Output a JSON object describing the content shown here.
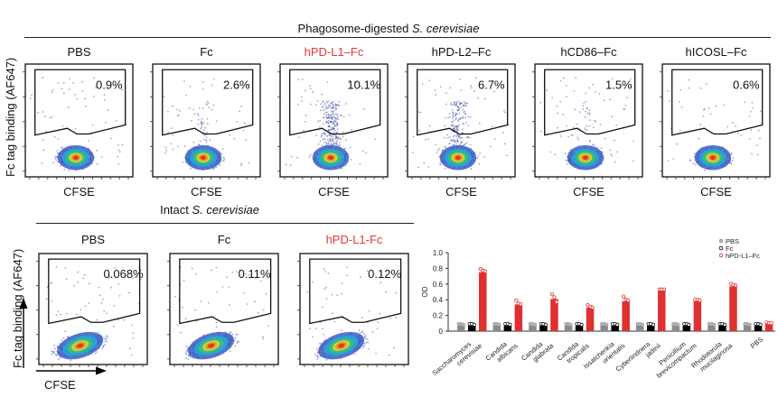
{
  "figure": {
    "top_section": {
      "title_prefix": "Phagosome-digested ",
      "title_italic": "S. cerevisiae",
      "y_axis_label": "Fc tag binding (AF647)",
      "x_axis_label": "CFSE",
      "panels": [
        {
          "label": "PBS",
          "percent": "0.9%",
          "highlight": false
        },
        {
          "label": "Fc",
          "percent": "2.6%",
          "highlight": false
        },
        {
          "label": "hPD-L1–Fc",
          "percent": "10.1%",
          "highlight": true
        },
        {
          "label": "hPD-L2–Fc",
          "percent": "6.7%",
          "highlight": false
        },
        {
          "label": "hCD86–Fc",
          "percent": "1.5%",
          "highlight": false
        },
        {
          "label": "hICOSL–Fc",
          "percent": "0.6%",
          "highlight": false
        }
      ]
    },
    "bottom_section": {
      "title_prefix": "Intact ",
      "title_italic": "S. cerevisiae",
      "y_axis_label": "Fc tag binding (AF647)",
      "x_axis_label": "CFSE",
      "panels": [
        {
          "label": "PBS",
          "percent": "0.068%",
          "highlight": false
        },
        {
          "label": "Fc",
          "percent": "0.11%",
          "highlight": false
        },
        {
          "label": "hPD-L1-Fc",
          "percent": "0.12%",
          "highlight": true
        }
      ]
    },
    "colors": {
      "highlight": "#e8373a",
      "pbs": "#8a8a8a",
      "fc": "#000000",
      "hpdl1": "#e0302f"
    }
  },
  "chart_data": {
    "type": "bar",
    "title": "",
    "xlabel": "",
    "ylabel": "OD",
    "ylim": [
      0,
      1.0
    ],
    "yticks": [
      "0",
      "0.2",
      "0.4",
      "0.6",
      "0.8",
      "1.0"
    ],
    "ytick_values": [
      0,
      0.2,
      0.4,
      0.6,
      0.8,
      1.0
    ],
    "legend_position": "top-right",
    "categories": [
      "Saccharomyces cerevisiae",
      "Candida albicans",
      "Candida glabrata",
      "Candida tropicalis",
      "Issatchenkia orientalis",
      "Cyberlindnera jadinii",
      "Penicillium brevicompactum",
      "Rhodotorula mucilaginosa",
      "PBS"
    ],
    "category_lines": [
      [
        "Saccharomyces",
        "cerevisiae"
      ],
      [
        "Candida",
        "albicans"
      ],
      [
        "Candida",
        "glabrata"
      ],
      [
        "Candida",
        "tropicalis"
      ],
      [
        "Issatchenkia",
        "orientalis"
      ],
      [
        "Cyberlindnera",
        "jadinii"
      ],
      [
        "Penicillium",
        "brevicompactum"
      ],
      [
        "Rhodotorula",
        "mucilaginosa"
      ],
      [
        "PBS"
      ]
    ],
    "series": [
      {
        "name": "PBS",
        "color": "#8a8a8a",
        "values": [
          0.07,
          0.07,
          0.07,
          0.07,
          0.07,
          0.07,
          0.07,
          0.07,
          0.07
        ]
      },
      {
        "name": "Fc",
        "color": "#000000",
        "values": [
          0.07,
          0.07,
          0.07,
          0.07,
          0.07,
          0.07,
          0.07,
          0.07,
          0.07
        ]
      },
      {
        "name": "hPD-L1–Fc",
        "color": "#e0302f",
        "values": [
          0.75,
          0.34,
          0.41,
          0.3,
          0.38,
          0.52,
          0.38,
          0.57,
          0.09
        ],
        "points": [
          [
            0.78,
            0.76,
            0.75
          ],
          [
            0.38,
            0.34,
            0.33
          ],
          [
            0.46,
            0.42,
            0.36
          ],
          [
            0.32,
            0.3,
            0.29
          ],
          [
            0.43,
            0.39,
            0.38
          ],
          [
            0.52,
            0.52,
            0.52
          ],
          [
            0.39,
            0.39,
            0.38
          ],
          [
            0.59,
            0.58,
            0.57
          ],
          [
            0.1,
            0.09,
            0.09
          ]
        ]
      }
    ]
  }
}
